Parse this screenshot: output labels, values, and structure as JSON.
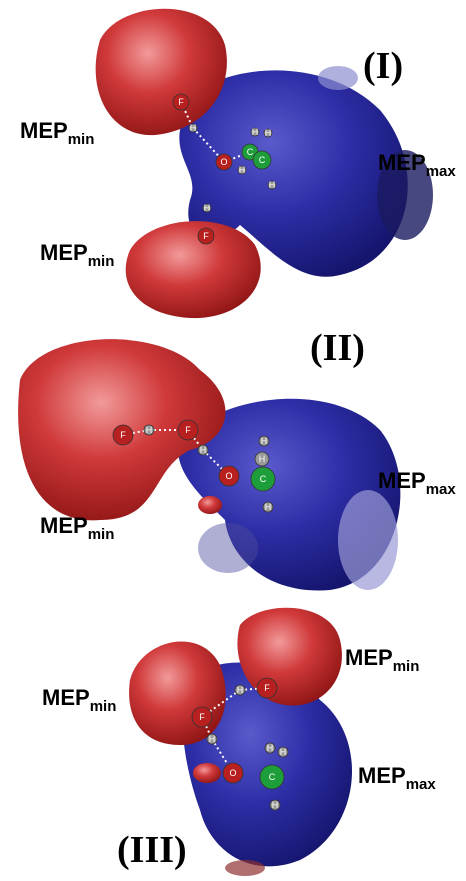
{
  "panels": [
    {
      "label": "(I)",
      "annotations": [
        {
          "main": "MEP",
          "sub": "min"
        },
        {
          "main": "MEP",
          "sub": "min"
        },
        {
          "main": "MEP",
          "sub": "max"
        }
      ],
      "atoms": [
        "F",
        "H",
        "O",
        "C",
        "C",
        "H",
        "H",
        "H",
        "H",
        "H",
        "F"
      ]
    },
    {
      "label": "(II)",
      "annotations": [
        {
          "main": "MEP",
          "sub": "min"
        },
        {
          "main": "MEP",
          "sub": "max"
        }
      ],
      "atoms": [
        "F",
        "H",
        "F",
        "H",
        "O",
        "H",
        "H",
        "C",
        "H"
      ]
    },
    {
      "label": "(III)",
      "annotations": [
        {
          "main": "MEP",
          "sub": "min"
        },
        {
          "main": "MEP",
          "sub": "min"
        },
        {
          "main": "MEP",
          "sub": "max"
        }
      ],
      "atoms": [
        "F",
        "H",
        "F",
        "H",
        "O",
        "H",
        "H",
        "C",
        "H"
      ]
    }
  ]
}
